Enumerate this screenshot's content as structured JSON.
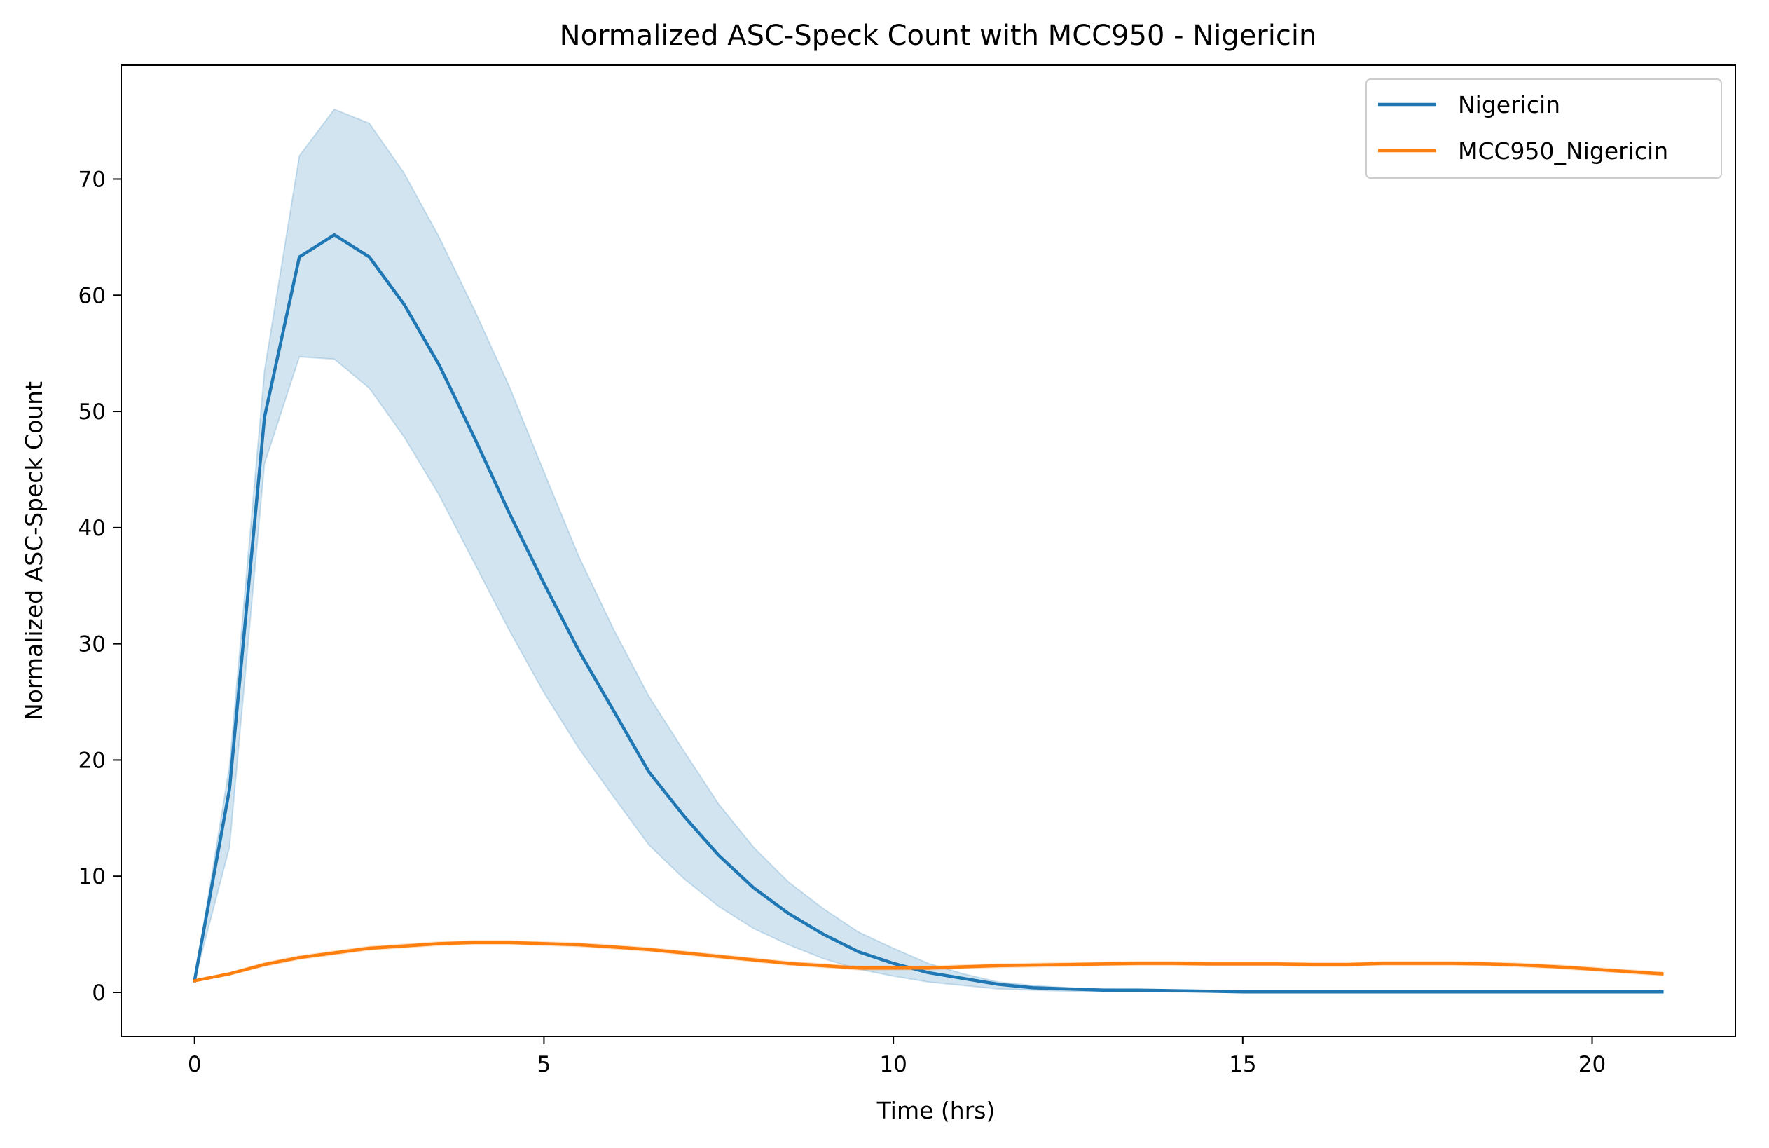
{
  "chart_data": {
    "type": "line",
    "title": "Normalized ASC-Speck Count with MCC950 - Nigericin",
    "xlabel": "Time (hrs)",
    "ylabel": "Normalized ASC-Speck Count",
    "xlim": [
      -1.05,
      22.05
    ],
    "ylim": [
      -3.8,
      79.8
    ],
    "xticks": [
      0,
      5,
      10,
      15,
      20
    ],
    "yticks": [
      0,
      10,
      20,
      30,
      40,
      50,
      60,
      70
    ],
    "grid": false,
    "legend_position": "top-right",
    "x": [
      0,
      0.5,
      1,
      1.5,
      2,
      2.5,
      3,
      3.5,
      4,
      4.5,
      5,
      5.5,
      6,
      6.5,
      7,
      7.5,
      8,
      8.5,
      9,
      9.5,
      10,
      10.5,
      11,
      11.5,
      12,
      12.5,
      13,
      13.5,
      14,
      14.5,
      15,
      15.5,
      16,
      16.5,
      17,
      17.5,
      18,
      18.5,
      19,
      19.5,
      20,
      20.5,
      21
    ],
    "series": [
      {
        "name": "Nigericin",
        "color": "#1f77b4",
        "values": [
          1.0,
          17.5,
          49.5,
          63.3,
          65.2,
          63.3,
          59.2,
          54.0,
          47.8,
          41.3,
          35.2,
          29.4,
          24.2,
          19.0,
          15.2,
          11.8,
          9.0,
          6.8,
          5.0,
          3.5,
          2.5,
          1.7,
          1.2,
          0.7,
          0.4,
          0.3,
          0.2,
          0.2,
          0.15,
          0.1,
          0.05,
          0.05,
          0.05,
          0.05,
          0.05,
          0.05,
          0.05,
          0.05,
          0.05,
          0.05,
          0.05,
          0.05,
          0.05
        ],
        "upper": [
          1.0,
          19.5,
          53.5,
          72.0,
          76.0,
          74.8,
          70.5,
          65.0,
          58.8,
          52.2,
          44.8,
          37.5,
          31.2,
          25.5,
          20.8,
          16.2,
          12.5,
          9.5,
          7.2,
          5.2,
          3.8,
          2.5,
          1.6,
          0.9,
          0.6,
          0.4,
          0.3,
          0.25,
          0.2,
          0.15,
          0.1,
          0.1,
          0.1,
          0.1,
          0.1,
          0.1,
          0.1,
          0.1,
          0.1,
          0.1,
          0.1,
          0.1,
          0.1
        ],
        "lower": [
          1.0,
          12.5,
          45.5,
          54.7,
          54.5,
          52.0,
          47.8,
          42.8,
          37.0,
          31.2,
          25.8,
          21.0,
          16.8,
          12.7,
          9.8,
          7.4,
          5.5,
          4.1,
          2.9,
          2.0,
          1.4,
          0.9,
          0.6,
          0.3,
          0.2,
          0.1,
          0.1,
          0.1,
          0.05,
          0.05,
          0.0,
          0.0,
          0.0,
          0.0,
          0.0,
          0.0,
          0.0,
          0.0,
          0.0,
          0.0,
          0.0,
          0.0,
          0.0
        ]
      },
      {
        "name": "MCC950_Nigericin",
        "color": "#ff7f0e",
        "values": [
          1.0,
          1.6,
          2.4,
          3.0,
          3.4,
          3.8,
          4.0,
          4.2,
          4.3,
          4.3,
          4.2,
          4.1,
          3.9,
          3.7,
          3.4,
          3.1,
          2.8,
          2.5,
          2.3,
          2.1,
          2.1,
          2.1,
          2.2,
          2.3,
          2.35,
          2.4,
          2.45,
          2.5,
          2.5,
          2.45,
          2.45,
          2.45,
          2.4,
          2.4,
          2.5,
          2.5,
          2.5,
          2.45,
          2.35,
          2.2,
          2.0,
          1.8,
          1.6
        ],
        "upper": [
          1.0,
          1.7,
          2.55,
          3.15,
          3.55,
          3.95,
          4.15,
          4.35,
          4.45,
          4.45,
          4.35,
          4.25,
          4.05,
          3.85,
          3.55,
          3.25,
          2.95,
          2.65,
          2.45,
          2.25,
          2.25,
          2.25,
          2.35,
          2.45,
          2.5,
          2.55,
          2.6,
          2.65,
          2.65,
          2.6,
          2.6,
          2.6,
          2.55,
          2.55,
          2.65,
          2.65,
          2.65,
          2.6,
          2.5,
          2.35,
          2.15,
          1.95,
          1.75
        ],
        "lower": [
          1.0,
          1.5,
          2.25,
          2.85,
          3.25,
          3.65,
          3.85,
          4.05,
          4.15,
          4.15,
          4.05,
          3.95,
          3.75,
          3.55,
          3.25,
          2.95,
          2.65,
          2.35,
          2.15,
          1.95,
          1.95,
          1.95,
          2.05,
          2.15,
          2.2,
          2.25,
          2.3,
          2.35,
          2.35,
          2.3,
          2.3,
          2.3,
          2.25,
          2.25,
          2.35,
          2.35,
          2.35,
          2.3,
          2.2,
          2.05,
          1.85,
          1.65,
          1.45
        ]
      }
    ]
  }
}
